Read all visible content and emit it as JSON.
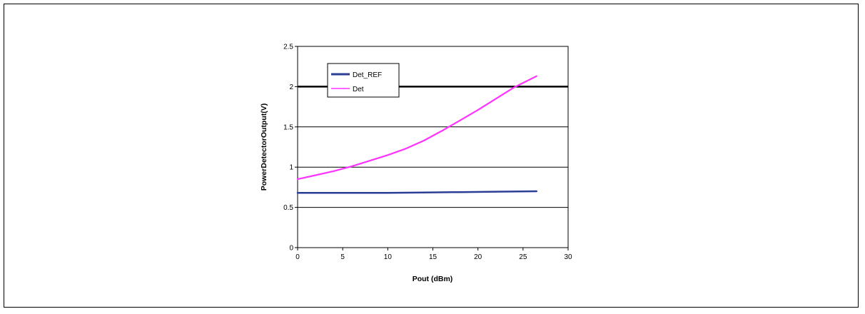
{
  "chart_data": {
    "type": "line",
    "title": "",
    "xlabel": "Pout (dBm)",
    "ylabel": "PowerDetectorOutput(V)",
    "xlim": [
      0,
      30
    ],
    "ylim": [
      0,
      2.5
    ],
    "xticks": [
      0,
      5,
      10,
      15,
      20,
      25,
      30
    ],
    "yticks": [
      0,
      0.5,
      1,
      1.5,
      2,
      2.5
    ],
    "xtick_labels": [
      "0",
      "5",
      "10",
      "15",
      "20",
      "25",
      "30"
    ],
    "ytick_labels": [
      "0",
      "0.5",
      "1",
      "1.5",
      "2",
      "2.5"
    ],
    "grid": "horizontal",
    "legend_position": "top-left",
    "series": [
      {
        "name": "Det_REF",
        "color": "#2b3e96",
        "x": [
          0,
          5,
          10,
          14,
          18,
          22,
          26.5
        ],
        "y": [
          0.68,
          0.68,
          0.68,
          0.685,
          0.69,
          0.695,
          0.7
        ]
      },
      {
        "name": "Det",
        "color": "#ff33ff",
        "x": [
          0,
          2,
          4,
          6,
          8,
          10,
          12,
          14,
          16,
          18,
          20,
          22,
          24,
          26.5
        ],
        "y": [
          0.85,
          0.9,
          0.95,
          1.01,
          1.08,
          1.15,
          1.23,
          1.33,
          1.45,
          1.58,
          1.71,
          1.85,
          1.99,
          2.13
        ]
      }
    ]
  }
}
